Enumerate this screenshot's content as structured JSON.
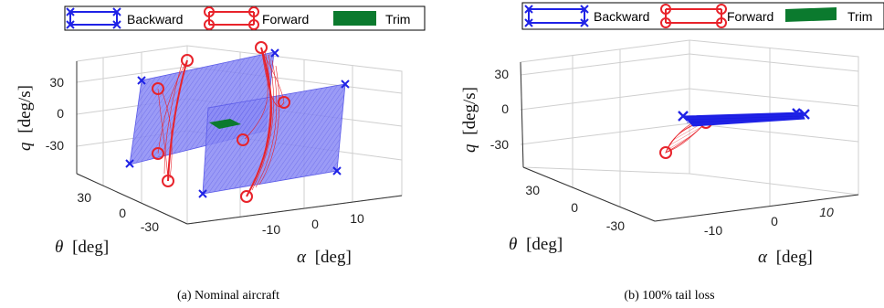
{
  "legend": {
    "backward": "Backward",
    "forward": "Forward",
    "trim": "Trim"
  },
  "colors": {
    "backward": "#1f22e6",
    "forward": "#e8232b",
    "trim": "#0b7a2e",
    "surface": "#7f7ff0"
  },
  "chart_data": [
    {
      "type": "surface3d",
      "caption": "(a)  Nominal aircraft",
      "q_axis": {
        "label_var": "q",
        "label_unit": "[deg/s]",
        "ticks": [
          "30",
          "0",
          "-30"
        ]
      },
      "theta_axis": {
        "label_var": "θ",
        "label_unit": "[deg]",
        "ticks": [
          "30",
          "0",
          "-30"
        ]
      },
      "alpha_axis": {
        "label_var": "α",
        "label_unit": "[deg]",
        "ticks": [
          "-10",
          "0",
          "10"
        ]
      },
      "grid": true
    },
    {
      "type": "surface3d",
      "caption": "(b)  100% tail loss",
      "q_axis": {
        "label_var": "q",
        "label_unit": "[deg/s]",
        "ticks": [
          "30",
          "0",
          "-30"
        ]
      },
      "theta_axis": {
        "label_var": "θ",
        "label_unit": "[deg]",
        "ticks": [
          "30",
          "0",
          "-30"
        ]
      },
      "alpha_axis": {
        "label_var": "α",
        "label_unit": "[deg]",
        "ticks": [
          "-10",
          "0",
          "10"
        ]
      },
      "grid": true
    }
  ]
}
